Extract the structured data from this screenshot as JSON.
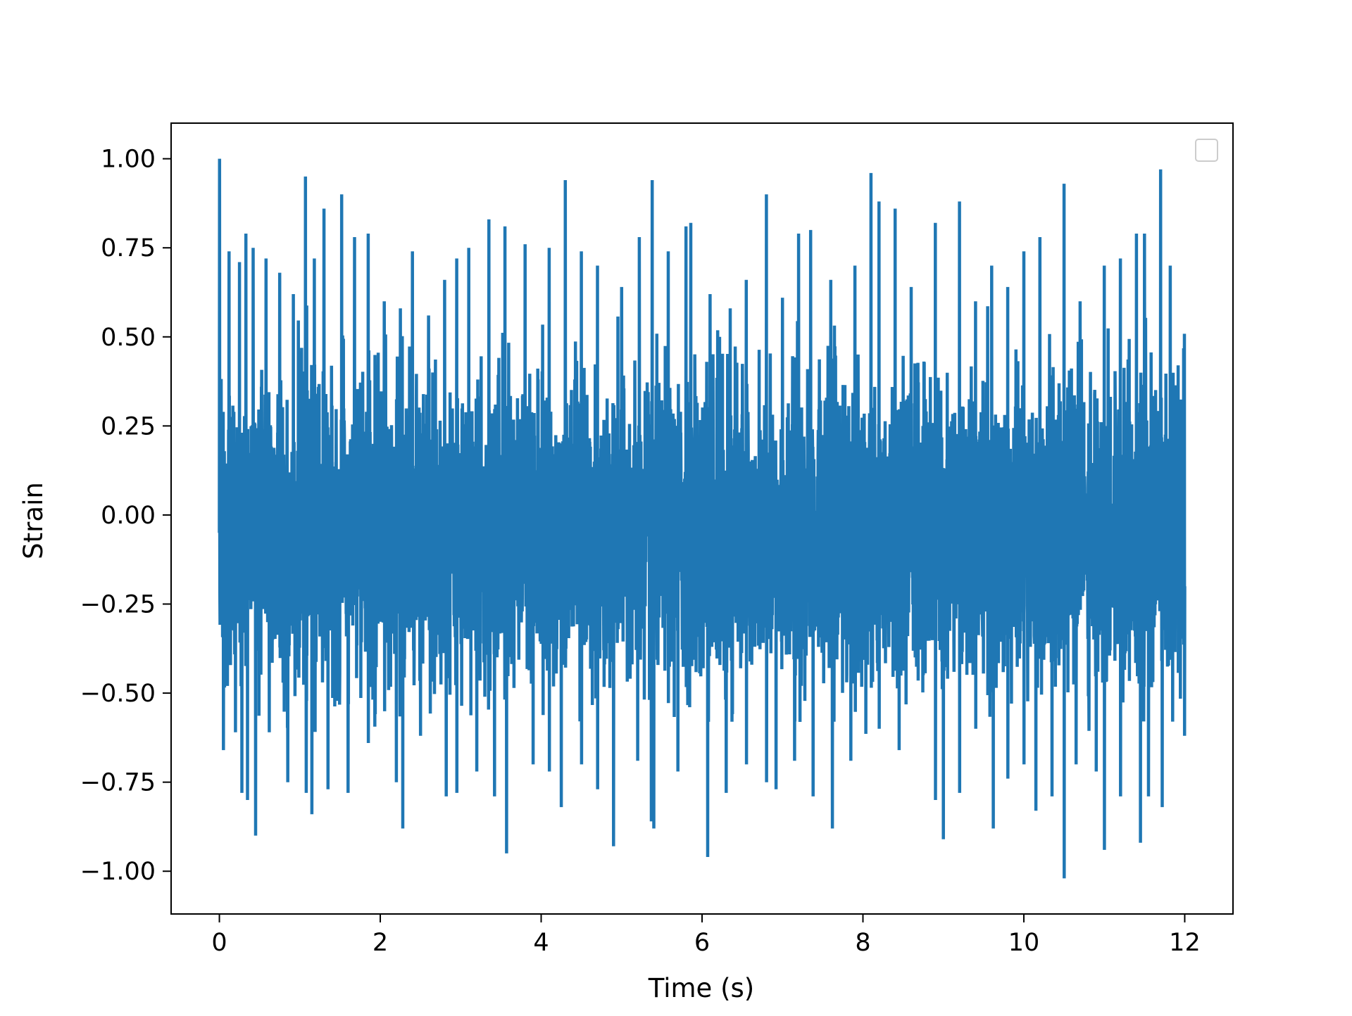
{
  "chart_data": {
    "type": "line",
    "title": "",
    "xlabel": "Time (s)",
    "ylabel": "Strain",
    "xlim": [
      -0.6,
      12.6
    ],
    "ylim": [
      -1.12,
      1.1
    ],
    "x_ticks": [
      0,
      2,
      4,
      6,
      8,
      10,
      12
    ],
    "x_tick_labels": [
      "0",
      "2",
      "4",
      "6",
      "8",
      "10",
      "12"
    ],
    "y_ticks": [
      1.0,
      0.75,
      0.5,
      0.25,
      0.0,
      -0.25,
      -0.5,
      -0.75,
      -1.0
    ],
    "y_tick_labels": [
      "1.00",
      "0.75",
      "0.50",
      "0.25",
      "0.00",
      "−0.25",
      "−0.50",
      "−0.75",
      "−1.00"
    ],
    "grid": false,
    "legend": {
      "placement": "top-right",
      "entries": []
    },
    "series": [
      {
        "color": "#1f77b4",
        "x_start": 0,
        "x_end": 12,
        "y_start": -0.05,
        "y_end": -0.2,
        "y_max": 1.0,
        "y_min": -1.02,
        "peaks": [
          [
            0.0,
            1.0
          ],
          [
            0.12,
            0.74
          ],
          [
            0.25,
            0.71
          ],
          [
            0.33,
            0.79
          ],
          [
            0.42,
            0.75
          ],
          [
            0.58,
            0.72
          ],
          [
            0.75,
            0.68
          ],
          [
            0.92,
            0.62
          ],
          [
            1.07,
            0.95
          ],
          [
            1.18,
            0.72
          ],
          [
            1.3,
            0.86
          ],
          [
            1.52,
            0.9
          ],
          [
            1.68,
            0.78
          ],
          [
            1.85,
            0.79
          ],
          [
            2.05,
            0.6
          ],
          [
            2.25,
            0.58
          ],
          [
            2.4,
            0.74
          ],
          [
            2.6,
            0.56
          ],
          [
            2.8,
            0.66
          ],
          [
            2.95,
            0.72
          ],
          [
            3.1,
            0.75
          ],
          [
            3.35,
            0.83
          ],
          [
            3.55,
            0.81
          ],
          [
            3.8,
            0.76
          ],
          [
            4.1,
            0.75
          ],
          [
            4.3,
            0.94
          ],
          [
            4.5,
            0.74
          ],
          [
            4.7,
            0.7
          ],
          [
            5.0,
            0.64
          ],
          [
            5.22,
            0.78
          ],
          [
            5.38,
            0.94
          ],
          [
            5.58,
            0.74
          ],
          [
            5.8,
            0.81
          ],
          [
            5.86,
            0.82
          ],
          [
            6.1,
            0.62
          ],
          [
            6.35,
            0.58
          ],
          [
            6.55,
            0.66
          ],
          [
            6.8,
            0.9
          ],
          [
            7.0,
            0.61
          ],
          [
            7.2,
            0.79
          ],
          [
            7.35,
            0.8
          ],
          [
            7.6,
            0.66
          ],
          [
            7.9,
            0.7
          ],
          [
            8.1,
            0.96
          ],
          [
            8.2,
            0.88
          ],
          [
            8.4,
            0.86
          ],
          [
            8.6,
            0.64
          ],
          [
            8.9,
            0.82
          ],
          [
            9.2,
            0.88
          ],
          [
            9.4,
            0.6
          ],
          [
            9.6,
            0.7
          ],
          [
            9.8,
            0.64
          ],
          [
            10.0,
            0.74
          ],
          [
            10.2,
            0.78
          ],
          [
            10.5,
            0.93
          ],
          [
            10.7,
            0.6
          ],
          [
            11.0,
            0.7
          ],
          [
            11.2,
            0.72
          ],
          [
            11.4,
            0.79
          ],
          [
            11.5,
            0.79
          ],
          [
            11.7,
            0.97
          ],
          [
            11.82,
            0.7
          ],
          [
            12.0,
            0.63
          ]
        ],
        "troughs": [
          [
            0.05,
            -0.66
          ],
          [
            0.2,
            -0.61
          ],
          [
            0.28,
            -0.78
          ],
          [
            0.35,
            -0.8
          ],
          [
            0.45,
            -0.9
          ],
          [
            0.62,
            -0.61
          ],
          [
            0.85,
            -0.75
          ],
          [
            1.08,
            -0.78
          ],
          [
            1.15,
            -0.84
          ],
          [
            1.35,
            -0.77
          ],
          [
            1.6,
            -0.78
          ],
          [
            1.85,
            -0.64
          ],
          [
            2.2,
            -0.75
          ],
          [
            2.28,
            -0.88
          ],
          [
            2.5,
            -0.62
          ],
          [
            2.82,
            -0.79
          ],
          [
            2.95,
            -0.78
          ],
          [
            3.2,
            -0.72
          ],
          [
            3.42,
            -0.79
          ],
          [
            3.57,
            -0.95
          ],
          [
            3.9,
            -0.7
          ],
          [
            4.1,
            -0.72
          ],
          [
            4.25,
            -0.82
          ],
          [
            4.5,
            -0.7
          ],
          [
            4.7,
            -0.77
          ],
          [
            4.9,
            -0.93
          ],
          [
            5.2,
            -0.69
          ],
          [
            5.37,
            -0.86
          ],
          [
            5.4,
            -0.88
          ],
          [
            5.7,
            -0.72
          ],
          [
            6.07,
            -0.96
          ],
          [
            6.3,
            -0.78
          ],
          [
            6.55,
            -0.7
          ],
          [
            6.8,
            -0.75
          ],
          [
            6.92,
            -0.77
          ],
          [
            7.15,
            -0.69
          ],
          [
            7.38,
            -0.79
          ],
          [
            7.62,
            -0.88
          ],
          [
            7.85,
            -0.69
          ],
          [
            8.2,
            -0.6
          ],
          [
            8.45,
            -0.66
          ],
          [
            8.9,
            -0.8
          ],
          [
            9.0,
            -0.91
          ],
          [
            9.2,
            -0.78
          ],
          [
            9.4,
            -0.6
          ],
          [
            9.62,
            -0.88
          ],
          [
            9.8,
            -0.74
          ],
          [
            10.0,
            -0.7
          ],
          [
            10.15,
            -0.83
          ],
          [
            10.35,
            -0.79
          ],
          [
            10.5,
            -1.02
          ],
          [
            10.65,
            -0.7
          ],
          [
            10.9,
            -0.72
          ],
          [
            11.0,
            -0.94
          ],
          [
            11.2,
            -0.79
          ],
          [
            11.45,
            -0.92
          ],
          [
            11.55,
            -0.79
          ],
          [
            11.72,
            -0.82
          ],
          [
            11.85,
            -0.58
          ],
          [
            12.0,
            -0.62
          ]
        ]
      }
    ]
  }
}
